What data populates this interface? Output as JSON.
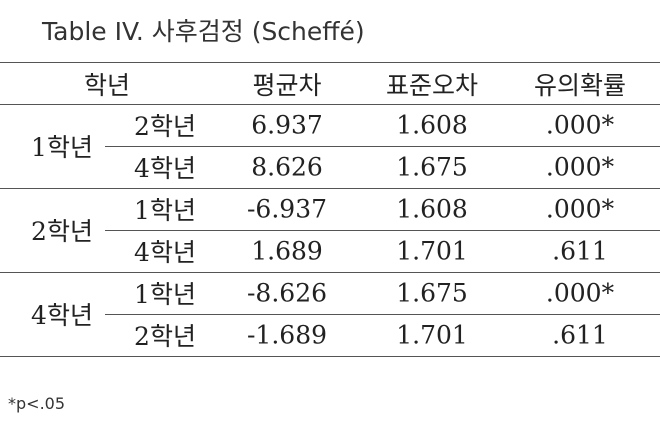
{
  "title": "Table IV. 사후검정 (Scheffé)",
  "table": {
    "header": [
      "학년",
      "평균차",
      "표준오차",
      "유의확률"
    ],
    "groups": [
      {
        "label": "1학년",
        "rows": [
          [
            "2학년",
            "6.937",
            "1.608",
            ".000*"
          ],
          [
            "4학년",
            "8.626",
            "1.675",
            ".000*"
          ]
        ]
      },
      {
        "label": "2학년",
        "rows": [
          [
            "1학년",
            "-6.937",
            "1.608",
            ".000*"
          ],
          [
            "4학년",
            "1.689",
            "1.701",
            ".611"
          ]
        ]
      },
      {
        "label": "4학년",
        "rows": [
          [
            "1학년",
            "-8.626",
            "1.675",
            ".000*"
          ],
          [
            "2학년",
            "-1.689",
            "1.701",
            ".611"
          ]
        ]
      }
    ]
  },
  "footnote": "*p<.05"
}
